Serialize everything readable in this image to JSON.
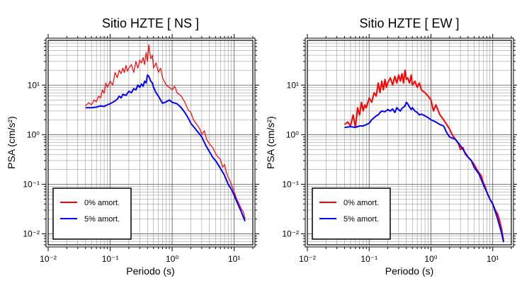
{
  "chart_data": [
    {
      "type": "line",
      "title": "Sitio HZTE [ NS ]",
      "xlabel": "Periodo (s)",
      "ylabel": "PSA (cm/s²)",
      "xscale": "log",
      "yscale": "log",
      "xlim": [
        0.01,
        20
      ],
      "ylim": [
        0.006,
        80
      ],
      "grid": true,
      "legend_position": "bottom-left",
      "x_ticks": [
        {
          "value": 0.01,
          "label": "10⁻²"
        },
        {
          "value": 0.1,
          "label": "10⁻¹"
        },
        {
          "value": 1,
          "label": "10⁰"
        },
        {
          "value": 10,
          "label": "10¹"
        }
      ],
      "y_ticks": [
        {
          "value": 0.01,
          "label": "10⁻²"
        },
        {
          "value": 0.1,
          "label": "10⁻¹"
        },
        {
          "value": 1,
          "label": "10⁰"
        },
        {
          "value": 10,
          "label": "10¹"
        }
      ],
      "series": [
        {
          "name": "0% amort.",
          "color": "#ff0000",
          "x": [
            0.04,
            0.045,
            0.05,
            0.055,
            0.06,
            0.065,
            0.07,
            0.075,
            0.08,
            0.085,
            0.09,
            0.1,
            0.11,
            0.12,
            0.13,
            0.14,
            0.15,
            0.16,
            0.17,
            0.18,
            0.19,
            0.2,
            0.22,
            0.24,
            0.26,
            0.28,
            0.3,
            0.32,
            0.34,
            0.36,
            0.38,
            0.4,
            0.42,
            0.45,
            0.48,
            0.5,
            0.55,
            0.6,
            0.65,
            0.7,
            0.8,
            0.9,
            1.0,
            1.1,
            1.2,
            1.4,
            1.6,
            1.8,
            2.0,
            2.2,
            2.5,
            2.8,
            3.0,
            3.3,
            3.6,
            4.0,
            4.5,
            5.0,
            5.5,
            6.0,
            6.5,
            7.0,
            7.5,
            8.0,
            9.0,
            10,
            11,
            12,
            13,
            14,
            15
          ],
          "y": [
            3.8,
            4.4,
            4.0,
            5.0,
            4.6,
            6.0,
            5.5,
            8.0,
            6.8,
            11.0,
            9.0,
            12.0,
            10.0,
            18.0,
            14.0,
            20.0,
            17.0,
            22.0,
            18.0,
            25.0,
            19.0,
            22.0,
            26.0,
            18.0,
            30.0,
            22.0,
            32.0,
            28.0,
            36.0,
            26.0,
            45.0,
            30.0,
            65.0,
            34.0,
            40.0,
            22.0,
            28.0,
            18.0,
            22.0,
            14.0,
            10.0,
            9.0,
            8.0,
            9.5,
            7.0,
            6.0,
            4.5,
            3.2,
            2.8,
            2.0,
            1.6,
            1.3,
            1.0,
            1.2,
            0.8,
            0.65,
            0.55,
            0.42,
            0.35,
            0.32,
            0.22,
            0.25,
            0.17,
            0.14,
            0.1,
            0.07,
            0.05,
            0.04,
            0.032,
            0.028,
            0.02
          ]
        },
        {
          "name": "5% amort.",
          "color": "#0000ff",
          "x": [
            0.04,
            0.05,
            0.06,
            0.07,
            0.08,
            0.09,
            0.1,
            0.11,
            0.12,
            0.13,
            0.14,
            0.15,
            0.16,
            0.18,
            0.2,
            0.22,
            0.24,
            0.26,
            0.28,
            0.3,
            0.32,
            0.34,
            0.36,
            0.38,
            0.4,
            0.42,
            0.45,
            0.48,
            0.5,
            0.55,
            0.6,
            0.65,
            0.7,
            0.8,
            0.9,
            1.0,
            1.2,
            1.4,
            1.6,
            1.8,
            2.0,
            2.5,
            3.0,
            3.5,
            4.0,
            4.5,
            5.0,
            6.0,
            7.0,
            8.0,
            9.0,
            10,
            11,
            12,
            13,
            14,
            15
          ],
          "y": [
            3.5,
            3.5,
            3.6,
            3.8,
            3.7,
            4.0,
            4.2,
            4.5,
            4.8,
            5.2,
            6.0,
            5.5,
            6.5,
            6.2,
            7.5,
            7.0,
            8.5,
            8.0,
            10.0,
            9.0,
            10.5,
            9.5,
            12.0,
            11.0,
            16.0,
            15.0,
            12.0,
            11.0,
            9.0,
            7.0,
            6.0,
            5.0,
            4.3,
            4.6,
            5.0,
            4.5,
            4.2,
            3.5,
            2.8,
            2.2,
            1.7,
            1.2,
            0.9,
            0.6,
            0.45,
            0.35,
            0.3,
            0.21,
            0.15,
            0.1,
            0.08,
            0.06,
            0.045,
            0.035,
            0.028,
            0.022,
            0.018
          ]
        }
      ]
    },
    {
      "type": "line",
      "title": "Sitio HZTE [ EW ]",
      "xlabel": "Periodo (s)",
      "ylabel": "PSA (cm/s²)",
      "xscale": "log",
      "yscale": "log",
      "xlim": [
        0.01,
        20
      ],
      "ylim": [
        0.006,
        80
      ],
      "grid": true,
      "legend_position": "bottom-left",
      "x_ticks": [
        {
          "value": 0.01,
          "label": "10⁻²"
        },
        {
          "value": 0.1,
          "label": "10⁻¹"
        },
        {
          "value": 1,
          "label": "10⁰"
        },
        {
          "value": 10,
          "label": "10¹"
        }
      ],
      "y_ticks": [
        {
          "value": 0.01,
          "label": "10⁻²"
        },
        {
          "value": 0.1,
          "label": "10⁻¹"
        },
        {
          "value": 1,
          "label": "10⁰"
        },
        {
          "value": 10,
          "label": "10¹"
        }
      ],
      "series": [
        {
          "name": "0% amort.",
          "color": "#ff0000",
          "x": [
            0.04,
            0.045,
            0.05,
            0.055,
            0.06,
            0.065,
            0.07,
            0.075,
            0.08,
            0.085,
            0.09,
            0.1,
            0.11,
            0.12,
            0.13,
            0.14,
            0.15,
            0.16,
            0.17,
            0.18,
            0.19,
            0.2,
            0.22,
            0.24,
            0.26,
            0.28,
            0.3,
            0.32,
            0.34,
            0.36,
            0.38,
            0.4,
            0.42,
            0.45,
            0.48,
            0.5,
            0.55,
            0.6,
            0.65,
            0.7,
            0.8,
            0.9,
            1.0,
            1.1,
            1.2,
            1.4,
            1.6,
            1.8,
            2.0,
            2.2,
            2.5,
            2.8,
            3.0,
            3.3,
            3.6,
            4.0,
            4.5,
            5.0,
            5.5,
            6.0,
            6.5,
            7.0,
            7.5,
            8.0,
            9.0,
            10,
            11,
            12,
            13,
            14,
            15
          ],
          "y": [
            1.6,
            1.8,
            1.5,
            2.5,
            1.4,
            3.5,
            2.5,
            4.5,
            3.0,
            4.0,
            3.5,
            5.5,
            4.5,
            7.0,
            6.0,
            11.0,
            7.0,
            12.0,
            8.0,
            13.0,
            9.0,
            11.0,
            14.0,
            10.0,
            15.0,
            11.0,
            16.0,
            12.0,
            17.0,
            11.0,
            20.0,
            13.0,
            14.0,
            11.0,
            16.0,
            10.0,
            12.0,
            9.0,
            11.0,
            8.0,
            7.0,
            6.0,
            5.0,
            3.0,
            4.0,
            2.5,
            2.0,
            1.6,
            1.3,
            1.0,
            0.8,
            0.65,
            0.5,
            0.55,
            0.4,
            0.35,
            0.3,
            0.25,
            0.2,
            0.17,
            0.15,
            0.11,
            0.09,
            0.07,
            0.05,
            0.04,
            0.03,
            0.025,
            0.018,
            0.012,
            0.007
          ]
        },
        {
          "name": "5% amort.",
          "color": "#0000ff",
          "x": [
            0.04,
            0.05,
            0.06,
            0.07,
            0.08,
            0.09,
            0.1,
            0.11,
            0.12,
            0.13,
            0.14,
            0.15,
            0.16,
            0.18,
            0.2,
            0.22,
            0.24,
            0.26,
            0.28,
            0.3,
            0.32,
            0.34,
            0.36,
            0.38,
            0.4,
            0.42,
            0.45,
            0.48,
            0.5,
            0.55,
            0.6,
            0.65,
            0.7,
            0.8,
            0.9,
            1.0,
            1.2,
            1.4,
            1.6,
            1.8,
            2.0,
            2.5,
            3.0,
            3.5,
            4.0,
            4.5,
            5.0,
            6.0,
            7.0,
            8.0,
            9.0,
            10,
            11,
            12,
            13,
            14,
            15
          ],
          "y": [
            1.4,
            1.45,
            1.4,
            1.5,
            1.5,
            1.6,
            1.7,
            2.0,
            2.2,
            2.4,
            2.5,
            2.8,
            3.0,
            2.9,
            3.2,
            3.0,
            3.3,
            2.8,
            3.5,
            3.2,
            3.0,
            3.4,
            3.6,
            3.8,
            4.5,
            4.2,
            3.6,
            3.2,
            3.5,
            3.0,
            2.8,
            2.5,
            2.6,
            2.4,
            2.2,
            2.0,
            1.8,
            1.6,
            1.5,
            1.1,
            0.9,
            0.8,
            0.6,
            0.45,
            0.35,
            0.3,
            0.22,
            0.16,
            0.1,
            0.07,
            0.05,
            0.04,
            0.028,
            0.02,
            0.014,
            0.01,
            0.0068
          ]
        }
      ]
    }
  ]
}
